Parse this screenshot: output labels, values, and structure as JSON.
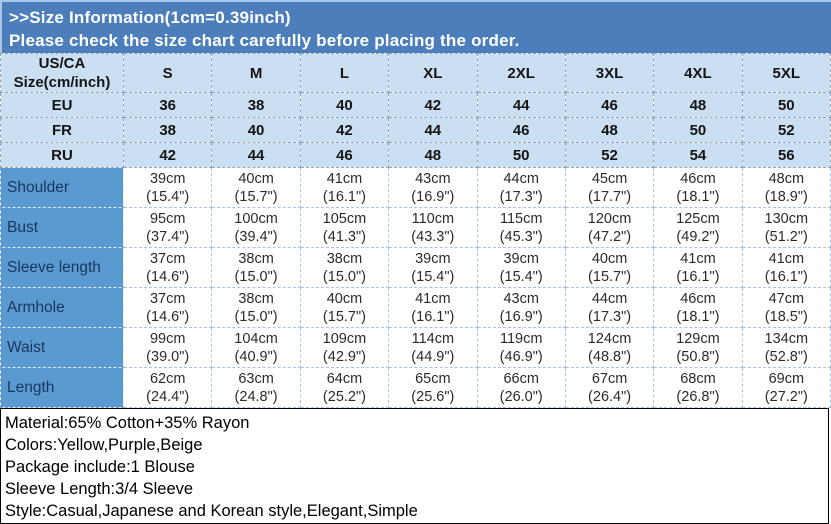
{
  "banner": {
    "title": ">>Size Information(1cm=0.39inch)",
    "note": "Please check the size chart carefully before placing the order."
  },
  "colors": {
    "banner_blue": "#4b7eba",
    "header_light_blue": "#cbdff2",
    "label_column_blue": "#5b99d1",
    "label_text_navy": "#17375d"
  },
  "size_chart": {
    "corner_label": "US/CA\nSize(cm/inch)",
    "size_headers": [
      "S",
      "M",
      "L",
      "XL",
      "2XL",
      "3XL",
      "4XL",
      "5XL"
    ],
    "region_rows": [
      {
        "label": "EU",
        "values": [
          "36",
          "38",
          "40",
          "42",
          "44",
          "46",
          "48",
          "50"
        ]
      },
      {
        "label": "FR",
        "values": [
          "38",
          "40",
          "42",
          "44",
          "46",
          "48",
          "50",
          "52"
        ]
      },
      {
        "label": "RU",
        "values": [
          "42",
          "44",
          "46",
          "48",
          "50",
          "52",
          "54",
          "56"
        ]
      }
    ],
    "measurement_rows": [
      {
        "label": "Shoulder",
        "values": [
          "39cm\n(15.4\")",
          "40cm\n(15.7\")",
          "41cm\n(16.1\")",
          "43cm\n(16.9\")",
          "44cm\n(17.3\")",
          "45cm\n(17.7\")",
          "46cm\n(18.1\")",
          "48cm\n(18.9\")"
        ]
      },
      {
        "label": "Bust",
        "values": [
          "95cm\n(37.4\")",
          "100cm\n(39.4\")",
          "105cm\n(41.3\")",
          "110cm\n(43.3\")",
          "115cm\n(45.3\")",
          "120cm\n(47.2\")",
          "125cm\n(49.2\")",
          "130cm\n(51.2\")"
        ]
      },
      {
        "label": "Sleeve length",
        "values": [
          "37cm\n(14.6\")",
          "38cm\n(15.0\")",
          "38cm\n(15.0\")",
          "39cm\n(15.4\")",
          "39cm\n(15.4\")",
          "40cm\n(15.7\")",
          "41cm\n(16.1\")",
          "41cm\n(16.1\")"
        ]
      },
      {
        "label": "Armhole",
        "values": [
          "37cm\n(14.6\")",
          "38cm\n(15.0\")",
          "40cm\n(15.7\")",
          "41cm\n(16.1\")",
          "43cm\n(16.9\")",
          "44cm\n(17.3\")",
          "46cm\n(18.1\")",
          "47cm\n(18.5\")"
        ]
      },
      {
        "label": "Waist",
        "values": [
          "99cm\n(39.0\")",
          "104cm\n(40.9\")",
          "109cm\n(42.9\")",
          "114cm\n(44.9\")",
          "119cm\n(46.9\")",
          "124cm\n(48.8\")",
          "129cm\n(50.8\")",
          "134cm\n(52.8\")"
        ]
      },
      {
        "label": "Length",
        "values": [
          "62cm\n(24.4\")",
          "63cm\n(24.8\")",
          "64cm\n(25.2\")",
          "65cm\n(25.6\")",
          "66cm\n(26.0\")",
          "67cm\n(26.4\")",
          "68cm\n(26.8\")",
          "69cm\n(27.2\")"
        ]
      }
    ]
  },
  "details": {
    "lines": [
      "Material:65% Cotton+35% Rayon",
      "Colors:Yellow,Purple,Beige",
      "Package include:1 Blouse",
      "Sleeve Length:3/4 Sleeve",
      "Style:Casual,Japanese and Korean style,Elegant,Simple"
    ]
  }
}
